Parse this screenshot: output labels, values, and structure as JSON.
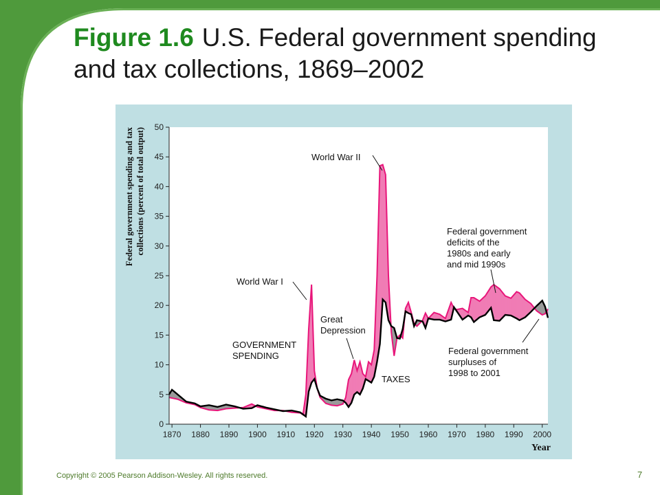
{
  "slide": {
    "figure_label": "Figure 1.6",
    "title": "U.S. Federal government spending and tax collections, 1869–2002",
    "copyright": "Copyright © 2005 Pearson Addison-Wesley. All rights reserved.",
    "page_number": "7",
    "colors": {
      "border_green": "#4f9a3c",
      "figure_green": "#1f8a1f",
      "panel_bg": "#bfdfe3",
      "spending": "#e8167a",
      "deficit_fill": "#f07cb5",
      "surplus_fill": "#9a9a9a",
      "taxes": "#000000"
    }
  },
  "chart_data": {
    "type": "line",
    "title": "",
    "xlabel": "Year",
    "ylabel_lines": [
      "Federal government spending and tax",
      "collections (percent of total output)"
    ],
    "xlim": [
      1869,
      2002
    ],
    "ylim": [
      0,
      50
    ],
    "x_ticks": [
      "1870",
      "1880",
      "1890",
      "1900",
      "1910",
      "1920",
      "1930",
      "1940",
      "1950",
      "1960",
      "1970",
      "1980",
      "1990",
      "2000"
    ],
    "y_ticks": [
      "0",
      "5",
      "10",
      "15",
      "20",
      "25",
      "30",
      "35",
      "40",
      "45",
      "50"
    ],
    "grid": false,
    "series": [
      {
        "name": "GOVERNMENT SPENDING",
        "color": "#e8167a",
        "points": [
          [
            1869,
            4.5
          ],
          [
            1872,
            4.2
          ],
          [
            1875,
            3.6
          ],
          [
            1878,
            3.3
          ],
          [
            1880,
            2.8
          ],
          [
            1883,
            2.4
          ],
          [
            1886,
            2.3
          ],
          [
            1889,
            2.6
          ],
          [
            1892,
            2.7
          ],
          [
            1895,
            2.8
          ],
          [
            1898,
            3.4
          ],
          [
            1900,
            2.9
          ],
          [
            1903,
            2.6
          ],
          [
            1906,
            2.3
          ],
          [
            1909,
            2.3
          ],
          [
            1912,
            2.0
          ],
          [
            1915,
            1.9
          ],
          [
            1916,
            1.6
          ],
          [
            1917,
            5.0
          ],
          [
            1918,
            16.0
          ],
          [
            1919,
            23.5
          ],
          [
            1920,
            9.0
          ],
          [
            1921,
            6.0
          ],
          [
            1922,
            4.5
          ],
          [
            1924,
            3.5
          ],
          [
            1926,
            3.2
          ],
          [
            1928,
            3.1
          ],
          [
            1930,
            3.4
          ],
          [
            1931,
            4.5
          ],
          [
            1932,
            7.5
          ],
          [
            1933,
            8.5
          ],
          [
            1934,
            10.8
          ],
          [
            1935,
            9.0
          ],
          [
            1936,
            10.5
          ],
          [
            1937,
            8.5
          ],
          [
            1938,
            8.0
          ],
          [
            1939,
            10.5
          ],
          [
            1940,
            10.0
          ],
          [
            1941,
            12.5
          ],
          [
            1942,
            25.0
          ],
          [
            1943,
            43.5
          ],
          [
            1944,
            43.7
          ],
          [
            1945,
            42.0
          ],
          [
            1946,
            25.0
          ],
          [
            1947,
            15.5
          ],
          [
            1948,
            11.5
          ],
          [
            1949,
            14.5
          ],
          [
            1950,
            15.0
          ],
          [
            1951,
            14.5
          ],
          [
            1952,
            19.5
          ],
          [
            1953,
            20.5
          ],
          [
            1954,
            18.8
          ],
          [
            1955,
            17.0
          ],
          [
            1956,
            16.5
          ],
          [
            1958,
            17.5
          ],
          [
            1959,
            18.7
          ],
          [
            1960,
            17.8
          ],
          [
            1962,
            18.8
          ],
          [
            1964,
            18.5
          ],
          [
            1966,
            17.8
          ],
          [
            1968,
            20.5
          ],
          [
            1969,
            19.5
          ],
          [
            1970,
            19.3
          ],
          [
            1972,
            19.5
          ],
          [
            1974,
            18.8
          ],
          [
            1975,
            21.3
          ],
          [
            1976,
            21.3
          ],
          [
            1978,
            20.7
          ],
          [
            1980,
            21.6
          ],
          [
            1982,
            23.1
          ],
          [
            1983,
            23.5
          ],
          [
            1985,
            22.8
          ],
          [
            1987,
            21.6
          ],
          [
            1989,
            21.2
          ],
          [
            1991,
            22.3
          ],
          [
            1992,
            22.1
          ],
          [
            1994,
            21.0
          ],
          [
            1996,
            20.3
          ],
          [
            1998,
            19.1
          ],
          [
            2000,
            18.4
          ],
          [
            2001,
            18.6
          ],
          [
            2002,
            19.4
          ]
        ]
      },
      {
        "name": "TAXES",
        "color": "#000000",
        "points": [
          [
            1869,
            5.0
          ],
          [
            1870,
            5.8
          ],
          [
            1872,
            5.0
          ],
          [
            1875,
            3.8
          ],
          [
            1878,
            3.5
          ],
          [
            1880,
            3.0
          ],
          [
            1883,
            3.2
          ],
          [
            1886,
            2.9
          ],
          [
            1889,
            3.3
          ],
          [
            1892,
            3.0
          ],
          [
            1895,
            2.6
          ],
          [
            1898,
            2.7
          ],
          [
            1900,
            3.2
          ],
          [
            1903,
            2.8
          ],
          [
            1906,
            2.5
          ],
          [
            1909,
            2.2
          ],
          [
            1912,
            2.3
          ],
          [
            1915,
            2.0
          ],
          [
            1917,
            1.3
          ],
          [
            1918,
            5.5
          ],
          [
            1919,
            7.0
          ],
          [
            1920,
            7.6
          ],
          [
            1921,
            6.0
          ],
          [
            1922,
            4.8
          ],
          [
            1924,
            4.3
          ],
          [
            1926,
            4.0
          ],
          [
            1928,
            4.2
          ],
          [
            1930,
            4.0
          ],
          [
            1931,
            3.6
          ],
          [
            1932,
            2.9
          ],
          [
            1933,
            3.6
          ],
          [
            1934,
            5.0
          ],
          [
            1935,
            5.4
          ],
          [
            1936,
            5.0
          ],
          [
            1937,
            6.0
          ],
          [
            1938,
            7.6
          ],
          [
            1939,
            7.3
          ],
          [
            1940,
            7.0
          ],
          [
            1941,
            8.0
          ],
          [
            1942,
            10.5
          ],
          [
            1943,
            13.5
          ],
          [
            1944,
            21.0
          ],
          [
            1945,
            20.5
          ],
          [
            1946,
            17.5
          ],
          [
            1947,
            16.5
          ],
          [
            1948,
            16.2
          ],
          [
            1949,
            14.5
          ],
          [
            1950,
            14.4
          ],
          [
            1951,
            16.0
          ],
          [
            1952,
            19.0
          ],
          [
            1953,
            18.7
          ],
          [
            1954,
            18.5
          ],
          [
            1955,
            16.5
          ],
          [
            1956,
            17.5
          ],
          [
            1958,
            17.3
          ],
          [
            1959,
            16.2
          ],
          [
            1960,
            17.8
          ],
          [
            1962,
            17.6
          ],
          [
            1964,
            17.6
          ],
          [
            1966,
            17.3
          ],
          [
            1968,
            17.6
          ],
          [
            1969,
            19.7
          ],
          [
            1970,
            19.0
          ],
          [
            1972,
            17.6
          ],
          [
            1974,
            18.3
          ],
          [
            1975,
            18.0
          ],
          [
            1976,
            17.2
          ],
          [
            1978,
            18.0
          ],
          [
            1980,
            18.4
          ],
          [
            1982,
            19.6
          ],
          [
            1983,
            17.5
          ],
          [
            1985,
            17.4
          ],
          [
            1987,
            18.4
          ],
          [
            1989,
            18.3
          ],
          [
            1991,
            17.8
          ],
          [
            1992,
            17.5
          ],
          [
            1994,
            18.0
          ],
          [
            1996,
            18.9
          ],
          [
            1998,
            19.9
          ],
          [
            2000,
            20.8
          ],
          [
            2001,
            19.8
          ],
          [
            2002,
            17.9
          ]
        ]
      }
    ],
    "annotations": {
      "government_spending": [
        "GOVERNMENT",
        "SPENDING"
      ],
      "taxes": "TAXES",
      "ww1": "World War I",
      "ww2": "World War II",
      "depression": [
        "Great",
        "Depression"
      ],
      "deficits": [
        "Federal government",
        "deficits of the",
        "1980s and early",
        "and mid 1990s"
      ],
      "surpluses": [
        "Federal government",
        "surpluses of",
        "1998 to 2001"
      ]
    }
  }
}
